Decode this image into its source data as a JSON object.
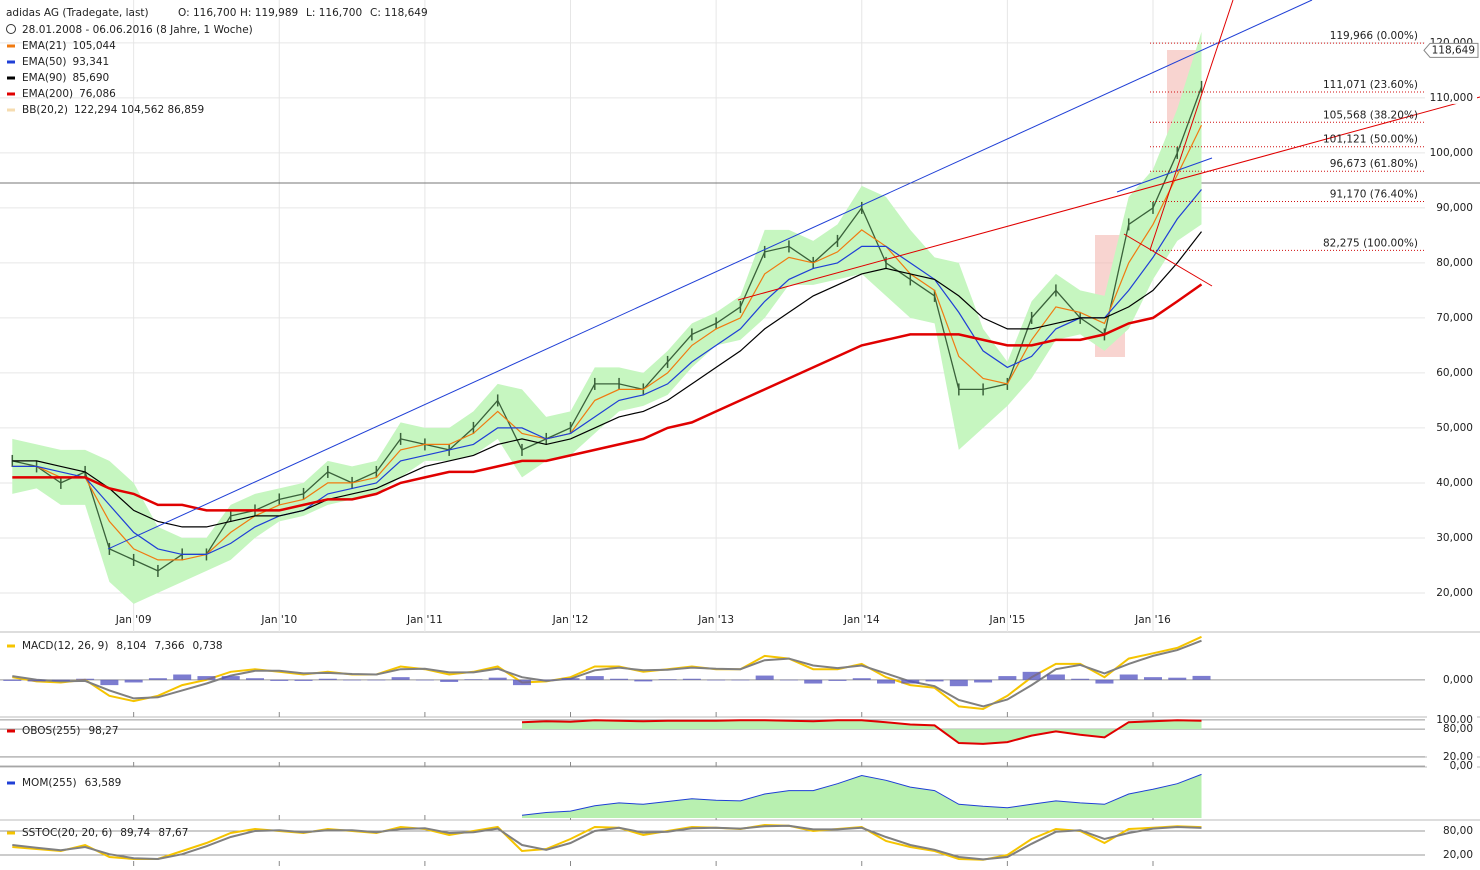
{
  "chart_data": [
    {
      "type": "line",
      "title": "adidas AG (Tradegate, last)",
      "ohlc": [
        "O: 116,700",
        "H: 119,989",
        "L: 116,700",
        "C: 118,649"
      ],
      "period": "28.01.2008 - 06.06.2016 (8 Jahre, 1 Woche)",
      "categories": [
        null,
        null,
        null,
        null,
        null,
        "Jan '09",
        null,
        null,
        null,
        null,
        null,
        "Jan '10",
        null,
        null,
        null,
        null,
        null,
        "Jan '11",
        null,
        null,
        null,
        null,
        null,
        "Jan '12",
        null,
        null,
        null,
        null,
        null,
        "Jan '13",
        null,
        null,
        null,
        null,
        null,
        "Jan '14",
        null,
        null,
        null,
        null,
        null,
        "Jan '15",
        null,
        null,
        null,
        null,
        null,
        "Jan '16",
        null,
        null
      ],
      "values": [
        44,
        43,
        40,
        42,
        28,
        26,
        24,
        27,
        27,
        34,
        35,
        37,
        38,
        42,
        40,
        42,
        48,
        47,
        46,
        50,
        55,
        46,
        48,
        50,
        58,
        58,
        57,
        62,
        67,
        69,
        72,
        82,
        83,
        80,
        84,
        90,
        80,
        77,
        74,
        57,
        57,
        58,
        70,
        75,
        70,
        67,
        87,
        90,
        100,
        112
      ],
      "color": "#3a613a",
      "band": {
        "name": "BB(20,2)",
        "legend": "122,294  104,562  86,859",
        "color": "#c6f6c0",
        "upper": [
          48,
          47,
          46,
          46,
          44,
          40,
          32,
          30,
          30,
          36,
          38,
          39,
          40,
          44,
          43,
          44,
          51,
          50,
          50,
          53,
          58,
          57,
          52,
          53,
          61,
          61,
          60,
          64,
          69,
          71,
          74,
          86,
          86,
          84,
          87,
          94,
          92,
          86,
          81,
          80,
          68,
          62,
          73,
          78,
          75,
          74,
          92,
          97,
          108,
          122
        ],
        "lower": [
          38,
          39,
          36,
          36,
          22,
          18,
          20,
          22,
          24,
          26,
          30,
          33,
          34,
          36,
          37,
          38,
          41,
          44,
          44,
          45,
          48,
          41,
          44,
          45,
          49,
          53,
          54,
          56,
          61,
          65,
          66,
          70,
          76,
          76,
          77,
          78,
          74,
          70,
          69,
          46,
          50,
          54,
          59,
          66,
          67,
          64,
          68,
          77,
          84,
          87
        ]
      },
      "series": [
        {
          "name": "EMA(21)",
          "legend": "105,044",
          "color": "#f07a10",
          "width": 1.2,
          "values": [
            43,
            43,
            41,
            41,
            33,
            28,
            26,
            26,
            27,
            31,
            34,
            36,
            37,
            40,
            40,
            41,
            46,
            47,
            47,
            49,
            53,
            49,
            48,
            49,
            55,
            57,
            57,
            60,
            65,
            68,
            70,
            78,
            81,
            80,
            82,
            86,
            83,
            78,
            75,
            63,
            59,
            58,
            66,
            72,
            71,
            69,
            80,
            87,
            96,
            105.044
          ]
        },
        {
          "name": "EMA(50)",
          "legend": "93,341",
          "color": "#1f3fd6",
          "width": 1.2,
          "values": [
            43,
            43,
            42,
            41,
            36,
            31,
            28,
            27,
            27,
            29,
            32,
            34,
            35,
            38,
            39,
            40,
            44,
            45,
            46,
            47,
            50,
            50,
            48,
            49,
            52,
            55,
            56,
            58,
            62,
            65,
            68,
            73,
            77,
            79,
            80,
            83,
            83,
            80,
            77,
            71,
            64,
            61,
            63,
            68,
            70,
            70,
            75,
            81,
            88,
            93.341
          ]
        },
        {
          "name": "EMA(90)",
          "legend": "85,690",
          "color": "#000000",
          "width": 1.2,
          "values": [
            44,
            44,
            43,
            42,
            39,
            35,
            33,
            32,
            32,
            33,
            34,
            34,
            35,
            37,
            38,
            39,
            41,
            43,
            44,
            45,
            47,
            48,
            47,
            48,
            50,
            52,
            53,
            55,
            58,
            61,
            64,
            68,
            71,
            74,
            76,
            78,
            79,
            78,
            77,
            74,
            70,
            68,
            68,
            69,
            70,
            70,
            72,
            75,
            80,
            85.69
          ]
        },
        {
          "name": "EMA(200)",
          "legend": "76,086",
          "color": "#e00000",
          "width": 2.5,
          "values": [
            41,
            41,
            41,
            41,
            39,
            38,
            36,
            36,
            35,
            35,
            35,
            35,
            36,
            37,
            37,
            38,
            40,
            41,
            42,
            42,
            43,
            44,
            44,
            45,
            46,
            47,
            48,
            50,
            51,
            53,
            55,
            57,
            59,
            61,
            63,
            65,
            66,
            67,
            67,
            67,
            66,
            65,
            65,
            66,
            66,
            67,
            69,
            70,
            73,
            76.086
          ]
        }
      ],
      "ylim": [
        12.9,
        127.8
      ],
      "yticks": [
        {
          "value": 20,
          "label": "20,000"
        },
        {
          "value": 30,
          "label": "30,000"
        },
        {
          "value": 40,
          "label": "40,000"
        },
        {
          "value": 50,
          "label": "50,000"
        },
        {
          "value": 60,
          "label": "60,000"
        },
        {
          "value": 70,
          "label": "70,000"
        },
        {
          "value": 80,
          "label": "80,000"
        },
        {
          "value": 90,
          "label": "90,000"
        },
        {
          "value": 100,
          "label": "100,000"
        },
        {
          "value": 110,
          "label": "110,000"
        },
        {
          "value": 120,
          "label": "120,000"
        }
      ],
      "grid": true,
      "fibonacci": [
        {
          "value": 119.966,
          "label": "119,966 (0.00%)"
        },
        {
          "value": 111.071,
          "label": "111,071 (23.60%)"
        },
        {
          "value": 105.568,
          "label": "105,568 (38.20%)"
        },
        {
          "value": 101.121,
          "label": "101,121 (50.00%)"
        },
        {
          "value": 96.673,
          "label": "96,673 (61.80%)"
        },
        {
          "value": 91.17,
          "label": "91,170 (76.40%)"
        },
        {
          "value": 82.275,
          "label": "82,275 (100.00%)"
        }
      ],
      "fib_color": "#d01010",
      "last_price": {
        "value": 118.649,
        "label": "118,649"
      }
    },
    {
      "type": "line",
      "title": "MACD(12, 26, 9)",
      "color": "#f5c400",
      "series": [
        {
          "legend": "8,104",
          "color": "#f5c400",
          "style": "line",
          "values": [
            0.5,
            -0.3,
            -0.5,
            0,
            -3,
            -4,
            -3,
            -1,
            0,
            1.5,
            2,
            1.5,
            1,
            1.5,
            1,
            1,
            2.5,
            2,
            1,
            1.5,
            2.5,
            -0.5,
            -0.3,
            0.5,
            2.5,
            2.5,
            1.5,
            2,
            2.5,
            2,
            2,
            4.5,
            4,
            2,
            2,
            3,
            0.5,
            -1,
            -1.5,
            -5,
            -5.5,
            -3,
            0.5,
            3,
            3,
            0.5,
            4,
            5,
            6,
            8.104
          ]
        },
        {
          "legend": "7,366",
          "color": "#808080",
          "style": "line",
          "values": [
            0.7,
            0,
            -0.3,
            -0.2,
            -2,
            -3.5,
            -3.3,
            -2,
            -0.7,
            0.8,
            1.7,
            1.7,
            1.2,
            1.3,
            1.1,
            1,
            2,
            2.1,
            1.4,
            1.4,
            2.1,
            0.5,
            -0.2,
            0.2,
            1.8,
            2.3,
            1.8,
            1.9,
            2.3,
            2.1,
            2,
            3.7,
            4,
            2.7,
            2.2,
            2.7,
            1.2,
            -0.3,
            -1.2,
            -3.8,
            -5,
            -3.7,
            -1,
            2,
            2.8,
            1.2,
            3,
            4.5,
            5.6,
            7.366
          ]
        },
        {
          "legend": "0,738",
          "color": "#5050c0",
          "style": "bar",
          "values": [
            -0.2,
            -0.3,
            -0.2,
            0.2,
            -1,
            -0.5,
            0.3,
            1,
            0.7,
            0.7,
            0.3,
            -0.2,
            -0.2,
            0.2,
            -0.1,
            0,
            0.5,
            -0.1,
            -0.4,
            0.1,
            0.4,
            -1,
            -0.1,
            0.3,
            0.7,
            0.2,
            -0.3,
            0.1,
            0.2,
            -0.1,
            0,
            0.8,
            0,
            -0.7,
            -0.2,
            0.3,
            -0.7,
            -0.7,
            -0.3,
            -1.2,
            -0.5,
            0.7,
            1.5,
            1,
            0.2,
            -0.7,
            1,
            0.5,
            0.4,
            0.738
          ]
        }
      ],
      "ylim": [
        -7,
        9
      ],
      "yticks": [
        {
          "value": 0,
          "label": "0,000"
        }
      ]
    },
    {
      "type": "line",
      "title": "OBOS(255)",
      "color": "#e00000",
      "series": [
        {
          "legend": "98,27",
          "color": "#e00000",
          "style": "area",
          "fill": "#b8f0b0",
          "base": 80,
          "values": [
            null,
            null,
            null,
            null,
            null,
            null,
            null,
            null,
            null,
            null,
            null,
            null,
            null,
            null,
            null,
            null,
            null,
            null,
            null,
            null,
            null,
            95,
            97,
            96,
            99,
            98,
            97,
            98,
            98,
            98,
            99,
            99,
            98,
            97,
            99,
            99,
            95,
            90,
            88,
            50,
            48,
            52,
            66,
            75,
            68,
            62,
            95,
            97,
            99,
            98.27
          ]
        }
      ],
      "ylim": [
        -4,
        104
      ],
      "yticks": [
        {
          "value": 100,
          "label": "100,00"
        },
        {
          "value": 80,
          "label": "80,00"
        },
        {
          "value": 20,
          "label": "20,00"
        },
        {
          "value": 0,
          "label": "0,00"
        }
      ]
    },
    {
      "type": "line",
      "title": "MOM(255)",
      "color": "#1f3fd6",
      "series": [
        {
          "legend": "63,589",
          "color": "#1f3fd6",
          "style": "area",
          "fill": "#b8f0b0",
          "base": 0,
          "values": [
            null,
            null,
            null,
            null,
            null,
            null,
            null,
            null,
            null,
            null,
            null,
            null,
            null,
            null,
            null,
            null,
            null,
            null,
            null,
            null,
            null,
            4,
            8,
            10,
            18,
            22,
            20,
            24,
            28,
            26,
            25,
            35,
            40,
            40,
            50,
            62,
            55,
            45,
            40,
            20,
            17,
            15,
            20,
            25,
            22,
            20,
            35,
            42,
            50,
            63.589
          ]
        }
      ],
      "ylim": [
        0,
        70
      ]
    },
    {
      "type": "line",
      "title": "SSTOC(20, 20, 6)",
      "color": "#f5c400",
      "series": [
        {
          "legend": "89,74",
          "color": "#f5c400",
          "style": "line",
          "values": [
            40,
            35,
            30,
            45,
            15,
            10,
            10,
            30,
            50,
            75,
            85,
            80,
            75,
            85,
            80,
            75,
            90,
            85,
            70,
            80,
            90,
            30,
            35,
            60,
            90,
            88,
            70,
            80,
            90,
            88,
            85,
            95,
            93,
            80,
            85,
            90,
            55,
            40,
            30,
            10,
            8,
            20,
            60,
            85,
            80,
            50,
            85,
            88,
            92,
            89.74
          ]
        },
        {
          "legend": "87,67",
          "color": "#808080",
          "style": "line",
          "values": [
            45,
            38,
            32,
            40,
            22,
            12,
            10,
            22,
            42,
            65,
            80,
            82,
            77,
            82,
            82,
            77,
            85,
            87,
            75,
            77,
            86,
            45,
            33,
            50,
            80,
            88,
            76,
            78,
            87,
            88,
            86,
            92,
            93,
            84,
            84,
            88,
            65,
            45,
            33,
            15,
            9,
            15,
            48,
            78,
            82,
            60,
            75,
            86,
            90,
            87.67
          ]
        }
      ],
      "ylim": [
        0,
        100
      ],
      "yticks": [
        {
          "value": 80,
          "label": "80,00"
        },
        {
          "value": 20,
          "label": "20,00"
        }
      ]
    }
  ]
}
